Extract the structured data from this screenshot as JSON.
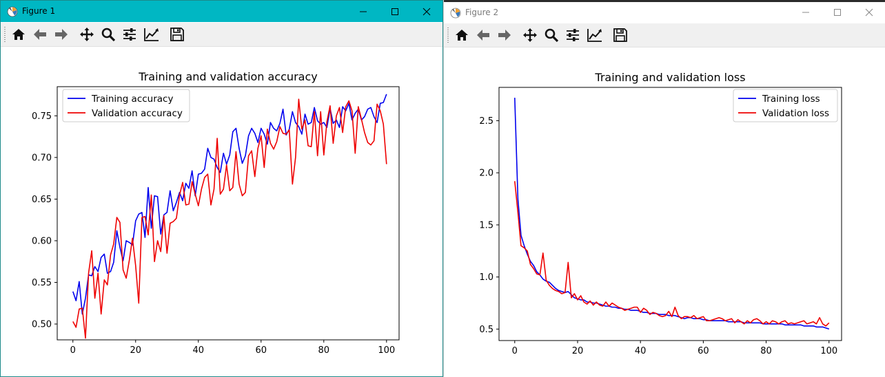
{
  "windows": [
    {
      "title": "Figure 1",
      "chart_data": {
        "type": "line",
        "title": "Training and validation accuracy",
        "xlabel": "",
        "ylabel": "",
        "xlim": [
          -5,
          104
        ],
        "ylim": [
          0.481,
          0.785
        ],
        "xticks": [
          0,
          20,
          40,
          60,
          80,
          100
        ],
        "yticks": [
          0.5,
          0.55,
          0.6,
          0.65,
          0.7,
          0.75
        ],
        "ytick_labels": [
          "0.50",
          "0.55",
          "0.60",
          "0.65",
          "0.70",
          "0.75"
        ],
        "legend_position": "top-left",
        "grid": false,
        "series": [
          {
            "name": "Training accuracy",
            "color": "#0000ee",
            "values": [
              0.539,
              0.528,
              0.551,
              0.512,
              0.531,
              0.559,
              0.558,
              0.569,
              0.563,
              0.58,
              0.584,
              0.561,
              0.563,
              0.574,
              0.612,
              0.592,
              0.576,
              0.6,
              0.598,
              0.595,
              0.624,
              0.632,
              0.634,
              0.604,
              0.664,
              0.615,
              0.654,
              0.653,
              0.608,
              0.631,
              0.634,
              0.66,
              0.636,
              0.646,
              0.658,
              0.648,
              0.669,
              0.663,
              0.684,
              0.654,
              0.68,
              0.681,
              0.686,
              0.711,
              0.7,
              0.698,
              0.688,
              0.682,
              0.705,
              0.692,
              0.703,
              0.731,
              0.735,
              0.711,
              0.693,
              0.702,
              0.726,
              0.735,
              0.729,
              0.718,
              0.735,
              0.728,
              0.716,
              0.742,
              0.735,
              0.732,
              0.741,
              0.758,
              0.727,
              0.734,
              0.755,
              0.742,
              0.737,
              0.728,
              0.752,
              0.74,
              0.742,
              0.76,
              0.744,
              0.74,
              0.742,
              0.736,
              0.759,
              0.741,
              0.745,
              0.736,
              0.761,
              0.756,
              0.765,
              0.745,
              0.753,
              0.758,
              0.745,
              0.749,
              0.758,
              0.76,
              0.749,
              0.742,
              0.765,
              0.766,
              0.776
            ]
          },
          {
            "name": "Validation accuracy",
            "color": "#ee0000",
            "values": [
              0.503,
              0.496,
              0.518,
              0.519,
              0.483,
              0.561,
              0.588,
              0.531,
              0.561,
              0.512,
              0.553,
              0.547,
              0.583,
              0.596,
              0.628,
              0.622,
              0.565,
              0.555,
              0.577,
              0.603,
              0.57,
              0.525,
              0.628,
              0.629,
              0.607,
              0.655,
              0.575,
              0.6,
              0.587,
              0.63,
              0.585,
              0.621,
              0.623,
              0.627,
              0.655,
              0.67,
              0.643,
              0.644,
              0.671,
              0.656,
              0.642,
              0.662,
              0.676,
              0.68,
              0.643,
              0.662,
              0.723,
              0.656,
              0.662,
              0.691,
              0.66,
              0.664,
              0.707,
              0.668,
              0.654,
              0.658,
              0.702,
              0.708,
              0.677,
              0.711,
              0.726,
              0.688,
              0.734,
              0.717,
              0.71,
              0.719,
              0.737,
              0.729,
              0.728,
              0.733,
              0.668,
              0.7,
              0.77,
              0.734,
              0.745,
              0.714,
              0.713,
              0.755,
              0.702,
              0.755,
              0.703,
              0.743,
              0.762,
              0.717,
              0.75,
              0.76,
              0.73,
              0.761,
              0.768,
              0.756,
              0.705,
              0.761,
              0.746,
              0.73,
              0.718,
              0.715,
              0.72,
              0.764,
              0.756,
              0.74,
              0.692
            ]
          }
        ]
      }
    },
    {
      "title": "Figure 2",
      "chart_data": {
        "type": "line",
        "title": "Training and validation loss",
        "xlabel": "",
        "ylabel": "",
        "xlim": [
          -5,
          104
        ],
        "ylim": [
          0.39,
          2.82
        ],
        "xticks": [
          0,
          20,
          40,
          60,
          80,
          100
        ],
        "yticks": [
          0.5,
          1.0,
          1.5,
          2.0,
          2.5
        ],
        "ytick_labels": [
          "0.5",
          "1.0",
          "1.5",
          "2.0",
          "2.5"
        ],
        "legend_position": "top-right",
        "grid": false,
        "series": [
          {
            "name": "Training loss",
            "color": "#0000ee",
            "values": [
              2.72,
              1.75,
              1.4,
              1.3,
              1.22,
              1.15,
              1.11,
              1.05,
              1.02,
              0.98,
              0.96,
              0.95,
              0.92,
              0.89,
              0.87,
              0.86,
              0.85,
              0.86,
              0.83,
              0.8,
              0.79,
              0.78,
              0.78,
              0.76,
              0.76,
              0.75,
              0.75,
              0.74,
              0.73,
              0.72,
              0.72,
              0.71,
              0.71,
              0.7,
              0.7,
              0.69,
              0.69,
              0.68,
              0.68,
              0.68,
              0.67,
              0.66,
              0.66,
              0.65,
              0.65,
              0.65,
              0.64,
              0.64,
              0.64,
              0.63,
              0.63,
              0.63,
              0.62,
              0.61,
              0.6,
              0.61,
              0.61,
              0.6,
              0.6,
              0.6,
              0.59,
              0.59,
              0.58,
              0.58,
              0.58,
              0.58,
              0.58,
              0.58,
              0.57,
              0.57,
              0.57,
              0.57,
              0.57,
              0.56,
              0.56,
              0.56,
              0.56,
              0.56,
              0.56,
              0.55,
              0.55,
              0.55,
              0.55,
              0.55,
              0.55,
              0.55,
              0.54,
              0.54,
              0.54,
              0.54,
              0.54,
              0.54,
              0.53,
              0.53,
              0.53,
              0.53,
              0.52,
              0.52,
              0.52,
              0.51,
              0.5
            ]
          },
          {
            "name": "Validation loss",
            "color": "#ee0000",
            "values": [
              1.92,
              1.62,
              1.3,
              1.28,
              1.25,
              1.12,
              1.08,
              1.03,
              1.02,
              1.23,
              0.97,
              0.92,
              0.89,
              0.87,
              0.86,
              0.84,
              0.85,
              1.14,
              0.8,
              0.84,
              0.78,
              0.82,
              0.76,
              0.74,
              0.77,
              0.73,
              0.76,
              0.73,
              0.72,
              0.76,
              0.72,
              0.75,
              0.73,
              0.71,
              0.7,
              0.68,
              0.69,
              0.7,
              0.71,
              0.71,
              0.66,
              0.7,
              0.68,
              0.64,
              0.66,
              0.65,
              0.63,
              0.62,
              0.63,
              0.67,
              0.62,
              0.71,
              0.63,
              0.6,
              0.62,
              0.62,
              0.61,
              0.63,
              0.6,
              0.61,
              0.62,
              0.58,
              0.58,
              0.59,
              0.6,
              0.61,
              0.6,
              0.58,
              0.59,
              0.6,
              0.56,
              0.59,
              0.57,
              0.55,
              0.58,
              0.56,
              0.59,
              0.6,
              0.58,
              0.55,
              0.57,
              0.55,
              0.58,
              0.57,
              0.55,
              0.57,
              0.58,
              0.55,
              0.56,
              0.55,
              0.56,
              0.57,
              0.58,
              0.55,
              0.56,
              0.57,
              0.55,
              0.61,
              0.55,
              0.53,
              0.56
            ]
          }
        ]
      }
    }
  ],
  "window_controls": {
    "minimize_icon": "minimize-icon",
    "maximize_icon": "maximize-icon",
    "close_icon": "close-icon"
  },
  "toolbar": {
    "buttons": [
      "home-icon",
      "back-arrow-icon",
      "forward-arrow-icon",
      "pan-move-icon",
      "zoom-magnifier-icon",
      "configure-subplots-icon",
      "edit-axis-line-icon",
      "save-floppy-icon"
    ]
  },
  "colors": {
    "active_titlebar": "#00b7c3",
    "toolbar_bg": "#f0f0f0",
    "training": "#0000ee",
    "validation": "#ee0000"
  }
}
